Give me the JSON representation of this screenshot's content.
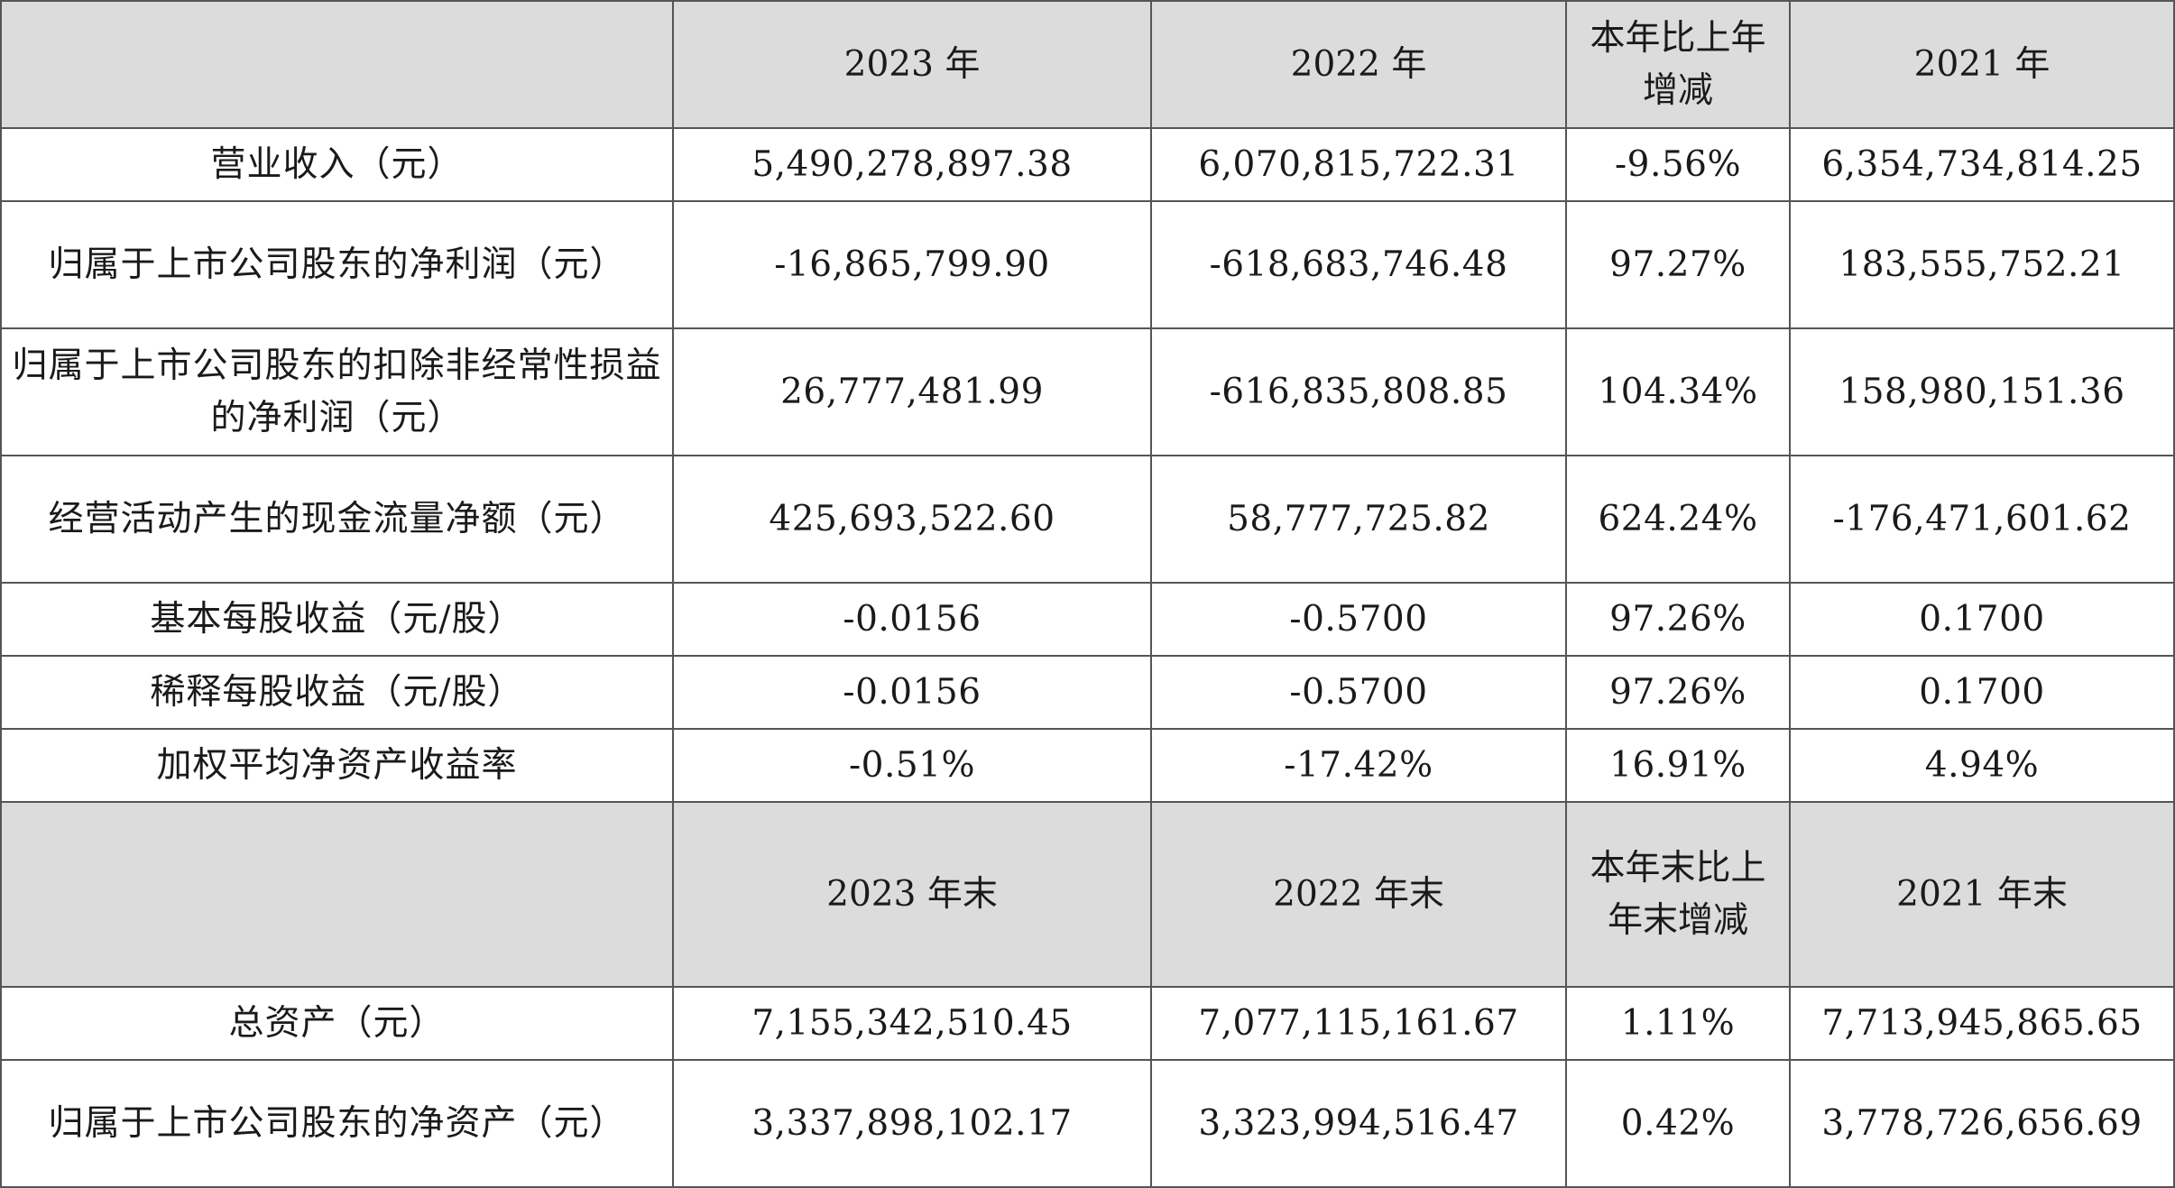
{
  "header_1": {
    "blank": "",
    "col_2023": "2023 年",
    "col_2022": "2022 年",
    "col_change": "本年比上年增减",
    "col_2021": "2021 年"
  },
  "rows_1": [
    {
      "label": "营业收入（元）",
      "v2023": "5,490,278,897.38",
      "v2022": "6,070,815,722.31",
      "change": "-9.56%",
      "v2021": "6,354,734,814.25"
    },
    {
      "label": "归属于上市公司股东的净利润（元）",
      "v2023": "-16,865,799.90",
      "v2022": "-618,683,746.48",
      "change": "97.27%",
      "v2021": "183,555,752.21"
    },
    {
      "label": "归属于上市公司股东的扣除非经常性损益的净利润（元）",
      "v2023": "26,777,481.99",
      "v2022": "-616,835,808.85",
      "change": "104.34%",
      "v2021": "158,980,151.36"
    },
    {
      "label": "经营活动产生的现金流量净额（元）",
      "v2023": "425,693,522.60",
      "v2022": "58,777,725.82",
      "change": "624.24%",
      "v2021": "-176,471,601.62"
    },
    {
      "label": "基本每股收益（元/股）",
      "v2023": "-0.0156",
      "v2022": "-0.5700",
      "change": "97.26%",
      "v2021": "0.1700"
    },
    {
      "label": "稀释每股收益（元/股）",
      "v2023": "-0.0156",
      "v2022": "-0.5700",
      "change": "97.26%",
      "v2021": "0.1700"
    },
    {
      "label": "加权平均净资产收益率",
      "v2023": "-0.51%",
      "v2022": "-17.42%",
      "change": "16.91%",
      "v2021": "4.94%"
    }
  ],
  "header_2": {
    "blank": "",
    "col_2023": "2023 年末",
    "col_2022": "2022 年末",
    "col_change": "本年末比上年末增减",
    "col_2021": "2021 年末"
  },
  "rows_2": [
    {
      "label": "总资产（元）",
      "v2023": "7,155,342,510.45",
      "v2022": "7,077,115,161.67",
      "change": "1.11%",
      "v2021": "7,713,945,865.65"
    },
    {
      "label": "归属于上市公司股东的净资产（元）",
      "v2023": "3,337,898,102.17",
      "v2022": "3,323,994,516.47",
      "change": "0.42%",
      "v2021": "3,778,726,656.69"
    }
  ]
}
